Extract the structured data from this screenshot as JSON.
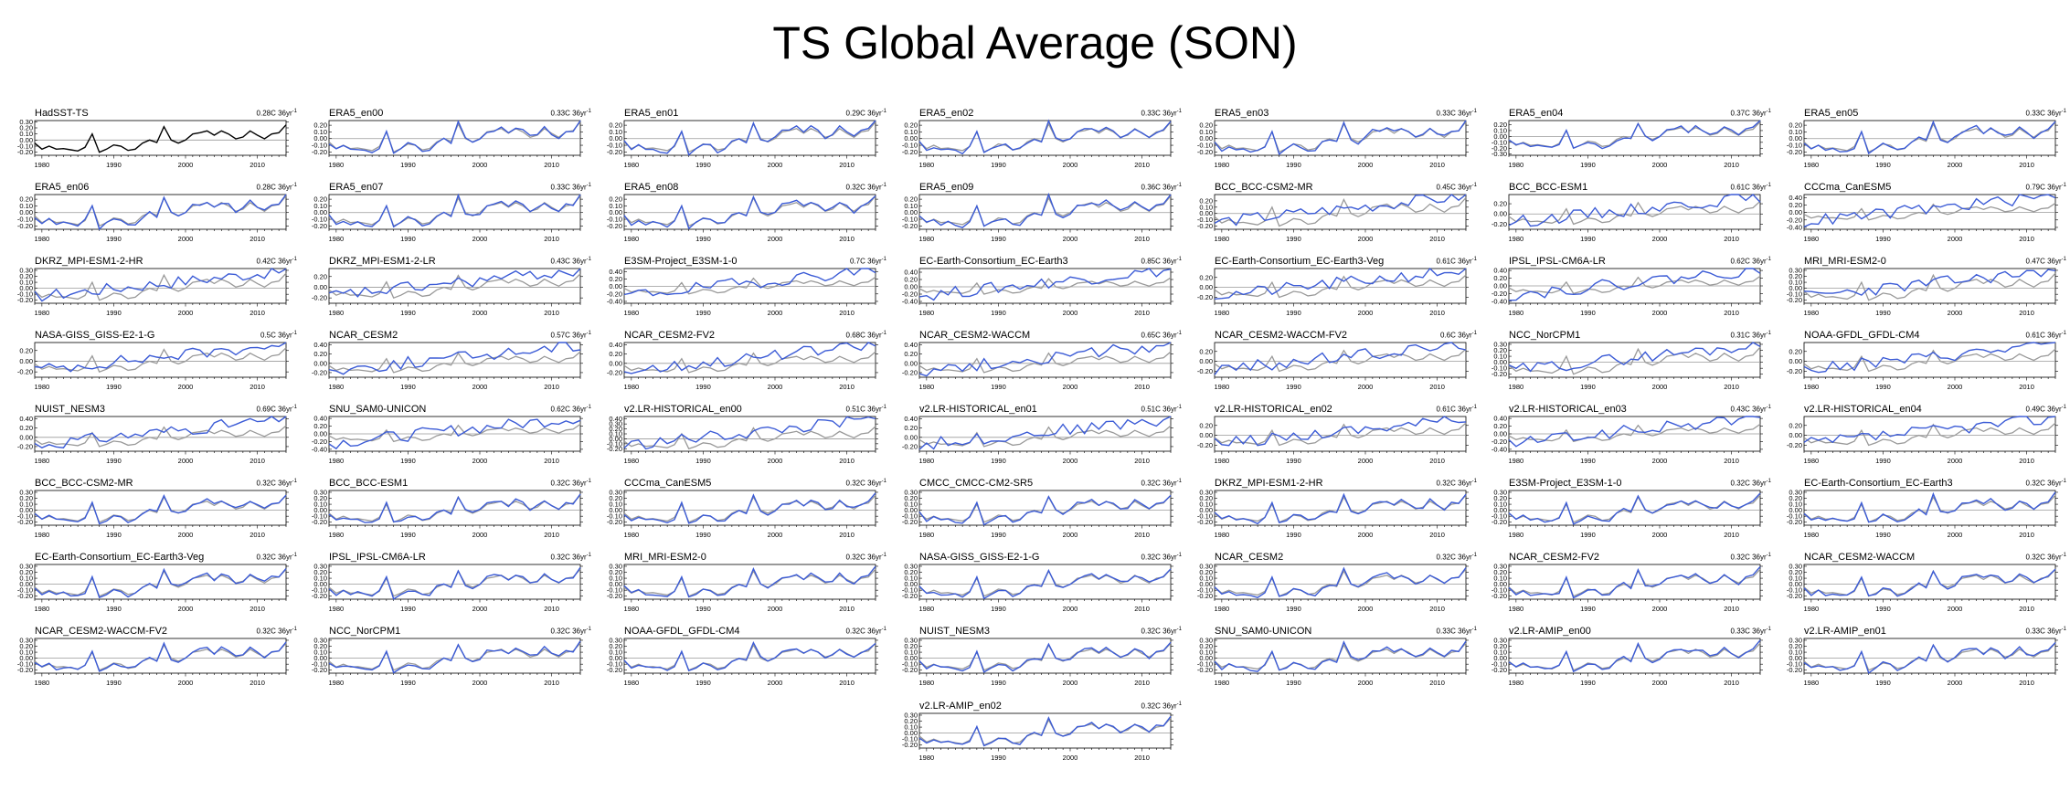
{
  "title": "TS Global Average (SON)",
  "colors": {
    "obs": "#000000",
    "obs_overlay": "#999999",
    "model": "#3b5bd6",
    "zero_line": "#999999"
  },
  "chart_data": {
    "type": "line",
    "title": "TS Global Average (SON)",
    "x_start": 1979,
    "x_end": 2014,
    "x_ticks": [
      "1980",
      "1990",
      "2000",
      "2010"
    ],
    "trend_unit": "36yr",
    "observation": {
      "name": "HadSST-TS",
      "years": [
        1979,
        1980,
        1981,
        1982,
        1983,
        1984,
        1985,
        1986,
        1987,
        1988,
        1989,
        1990,
        1991,
        1992,
        1993,
        1994,
        1995,
        1996,
        1997,
        1998,
        1999,
        2000,
        2001,
        2002,
        2003,
        2004,
        2005,
        2006,
        2007,
        2008,
        2009,
        2010,
        2011,
        2012,
        2013,
        2014
      ],
      "values": [
        -0.05,
        -0.15,
        -0.1,
        -0.15,
        -0.14,
        -0.16,
        -0.18,
        -0.12,
        0.1,
        -0.2,
        -0.15,
        -0.08,
        -0.1,
        -0.17,
        -0.15,
        -0.05,
        0.0,
        -0.04,
        0.22,
        0.0,
        -0.05,
        0.0,
        0.1,
        0.12,
        0.15,
        0.08,
        0.15,
        0.1,
        0.02,
        0.05,
        0.15,
        0.08,
        0.02,
        0.1,
        0.12,
        0.25
      ]
    },
    "panels": [
      {
        "name": "HadSST-TS",
        "trend": "0.28C",
        "yticks": [
          "0.30",
          "0.20",
          "0.10",
          "0.00",
          "-0.10",
          "-0.20"
        ],
        "ylim": [
          -0.25,
          0.32
        ],
        "kind": "obs"
      },
      {
        "name": "ERA5_en00",
        "trend": "0.33C",
        "yticks": [
          "0.20",
          "0.10",
          "0.00",
          "-0.10",
          "-0.20"
        ],
        "ylim": [
          -0.25,
          0.27
        ],
        "kind": "reanalysis"
      },
      {
        "name": "ERA5_en01",
        "trend": "0.29C",
        "yticks": [
          "0.20",
          "0.10",
          "0.00",
          "-0.10",
          "-0.20"
        ],
        "ylim": [
          -0.25,
          0.27
        ],
        "kind": "reanalysis"
      },
      {
        "name": "ERA5_en02",
        "trend": "0.33C",
        "yticks": [
          "0.20",
          "0.10",
          "0.00",
          "-0.10",
          "-0.20"
        ],
        "ylim": [
          -0.25,
          0.27
        ],
        "kind": "reanalysis"
      },
      {
        "name": "ERA5_en03",
        "trend": "0.33C",
        "yticks": [
          "0.20",
          "0.10",
          "0.00",
          "-0.10",
          "-0.20"
        ],
        "ylim": [
          -0.25,
          0.27
        ],
        "kind": "reanalysis"
      },
      {
        "name": "ERA5_en04",
        "trend": "0.37C",
        "yticks": [
          "0.20",
          "0.10",
          "0.00",
          "-0.10",
          "-0.20",
          "-0.30"
        ],
        "ylim": [
          -0.32,
          0.27
        ],
        "kind": "reanalysis"
      },
      {
        "name": "ERA5_en05",
        "trend": "0.33C",
        "yticks": [
          "0.20",
          "0.10",
          "0.00",
          "-0.10",
          "-0.20"
        ],
        "ylim": [
          -0.25,
          0.27
        ],
        "kind": "reanalysis"
      },
      {
        "name": "ERA5_en06",
        "trend": "0.28C",
        "yticks": [
          "0.20",
          "0.10",
          "0.00",
          "-0.10",
          "-0.20"
        ],
        "ylim": [
          -0.25,
          0.27
        ],
        "kind": "reanalysis"
      },
      {
        "name": "ERA5_en07",
        "trend": "0.33C",
        "yticks": [
          "0.20",
          "0.10",
          "0.00",
          "-0.10",
          "-0.20"
        ],
        "ylim": [
          -0.25,
          0.27
        ],
        "kind": "reanalysis"
      },
      {
        "name": "ERA5_en08",
        "trend": "0.32C",
        "yticks": [
          "0.20",
          "0.10",
          "0.00",
          "-0.10",
          "-0.20"
        ],
        "ylim": [
          -0.25,
          0.27
        ],
        "kind": "reanalysis"
      },
      {
        "name": "ERA5_en09",
        "trend": "0.36C",
        "yticks": [
          "0.20",
          "0.10",
          "0.00",
          "-0.10",
          "-0.20"
        ],
        "ylim": [
          -0.25,
          0.27
        ],
        "kind": "reanalysis"
      },
      {
        "name": "BCC_BCC-CSM2-MR",
        "trend": "0.45C",
        "yticks": [
          "0.20",
          "0.10",
          "0.00",
          "-0.10",
          "-0.20"
        ],
        "ylim": [
          -0.25,
          0.3
        ],
        "kind": "model"
      },
      {
        "name": "BCC_BCC-ESM1",
        "trend": "0.61C",
        "yticks": [
          "0.20",
          "0.00",
          "-0.20"
        ],
        "ylim": [
          -0.3,
          0.38
        ],
        "kind": "model"
      },
      {
        "name": "CCCma_CanESM5",
        "trend": "0.79C",
        "yticks": [
          "0.40",
          "0.20",
          "0.00",
          "-0.20",
          "-0.40"
        ],
        "ylim": [
          -0.45,
          0.48
        ],
        "kind": "model"
      },
      {
        "name": "DKRZ_MPI-ESM1-2-HR",
        "trend": "0.42C",
        "yticks": [
          "0.30",
          "0.20",
          "0.10",
          "0.00",
          "-0.10",
          "-0.20"
        ],
        "ylim": [
          -0.25,
          0.33
        ],
        "kind": "model"
      },
      {
        "name": "DKRZ_MPI-ESM1-2-LR",
        "trend": "0.43C",
        "yticks": [
          "0.20",
          "0.00",
          "-0.20"
        ],
        "ylim": [
          -0.3,
          0.35
        ],
        "kind": "model"
      },
      {
        "name": "E3SM-Project_E3SM-1-0",
        "trend": "0.7C",
        "yticks": [
          "0.40",
          "0.20",
          "0.00",
          "-0.20",
          "-0.40"
        ],
        "ylim": [
          -0.45,
          0.48
        ],
        "kind": "model"
      },
      {
        "name": "EC-Earth-Consortium_EC-Earth3",
        "trend": "0.85C",
        "yticks": [
          "0.40",
          "0.20",
          "0.00",
          "-0.20",
          "-0.40"
        ],
        "ylim": [
          -0.45,
          0.5
        ],
        "kind": "model"
      },
      {
        "name": "EC-Earth-Consortium_EC-Earth3-Veg",
        "trend": "0.61C",
        "yticks": [
          "0.20",
          "0.00",
          "-0.20"
        ],
        "ylim": [
          -0.32,
          0.38
        ],
        "kind": "model"
      },
      {
        "name": "IPSL_IPSL-CM6A-LR",
        "trend": "0.62C",
        "yticks": [
          "0.40",
          "0.20",
          "0.00",
          "-0.20",
          "-0.40"
        ],
        "ylim": [
          -0.45,
          0.45
        ],
        "kind": "model"
      },
      {
        "name": "MRI_MRI-ESM2-0",
        "trend": "0.47C",
        "yticks": [
          "0.30",
          "0.20",
          "0.10",
          "0.00",
          "-0.10",
          "-0.20"
        ],
        "ylim": [
          -0.25,
          0.33
        ],
        "kind": "model"
      },
      {
        "name": "NASA-GISS_GISS-E2-1-G",
        "trend": "0.5C",
        "yticks": [
          "0.20",
          "0.00",
          "-0.20"
        ],
        "ylim": [
          -0.3,
          0.35
        ],
        "kind": "model"
      },
      {
        "name": "NCAR_CESM2",
        "trend": "0.57C",
        "yticks": [
          "0.40",
          "0.20",
          "0.00",
          "-0.20"
        ],
        "ylim": [
          -0.3,
          0.45
        ],
        "kind": "model"
      },
      {
        "name": "NCAR_CESM2-FV2",
        "trend": "0.68C",
        "yticks": [
          "0.40",
          "0.20",
          "0.00",
          "-0.20"
        ],
        "ylim": [
          -0.3,
          0.45
        ],
        "kind": "model"
      },
      {
        "name": "NCAR_CESM2-WACCM",
        "trend": "0.65C",
        "yticks": [
          "0.40",
          "0.20",
          "0.00",
          "-0.20"
        ],
        "ylim": [
          -0.3,
          0.45
        ],
        "kind": "model"
      },
      {
        "name": "NCAR_CESM2-WACCM-FV2",
        "trend": "0.6C",
        "yticks": [
          "0.20",
          "0.00",
          "-0.20"
        ],
        "ylim": [
          -0.32,
          0.38
        ],
        "kind": "model"
      },
      {
        "name": "NCC_NorCPM1",
        "trend": "0.31C",
        "yticks": [
          "0.30",
          "0.20",
          "0.10",
          "0.00",
          "-0.10",
          "-0.20"
        ],
        "ylim": [
          -0.25,
          0.33
        ],
        "kind": "model"
      },
      {
        "name": "NOAA-GFDL_GFDL-CM4",
        "trend": "0.61C",
        "yticks": [
          "0.20",
          "0.00",
          "-0.20"
        ],
        "ylim": [
          -0.32,
          0.38
        ],
        "kind": "model"
      },
      {
        "name": "NUIST_NESM3",
        "trend": "0.69C",
        "yticks": [
          "0.40",
          "0.20",
          "0.00",
          "-0.20"
        ],
        "ylim": [
          -0.3,
          0.45
        ],
        "kind": "model"
      },
      {
        "name": "SNU_SAM0-UNICON",
        "trend": "0.62C",
        "yticks": [
          "0.40",
          "0.20",
          "0.00",
          "-0.20",
          "-0.40"
        ],
        "ylim": [
          -0.45,
          0.45
        ],
        "kind": "model"
      },
      {
        "name": "v2.LR-HISTORICAL_en00",
        "trend": "0.51C",
        "yticks": [
          "0.40",
          "0.30",
          "0.20",
          "0.10",
          "0.00",
          "-0.10",
          "-0.20"
        ],
        "ylim": [
          -0.25,
          0.45
        ],
        "kind": "model"
      },
      {
        "name": "v2.LR-HISTORICAL_en01",
        "trend": "0.51C",
        "yticks": [
          "0.40",
          "0.20",
          "0.00",
          "-0.20"
        ],
        "ylim": [
          -0.3,
          0.45
        ],
        "kind": "model"
      },
      {
        "name": "v2.LR-HISTORICAL_en02",
        "trend": "0.61C",
        "yticks": [
          "0.20",
          "0.00",
          "-0.20"
        ],
        "ylim": [
          -0.32,
          0.38
        ],
        "kind": "model"
      },
      {
        "name": "v2.LR-HISTORICAL_en03",
        "trend": "0.43C",
        "yticks": [
          "0.40",
          "0.20",
          "0.00",
          "-0.20",
          "-0.40"
        ],
        "ylim": [
          -0.45,
          0.45
        ],
        "kind": "model"
      },
      {
        "name": "v2.LR-HISTORICAL_en04",
        "trend": "0.49C",
        "yticks": [
          "0.20",
          "0.00",
          "-0.20"
        ],
        "ylim": [
          -0.32,
          0.38
        ],
        "kind": "model"
      },
      {
        "name": "BCC_BCC-CSM2-MR",
        "trend": "0.32C",
        "yticks": [
          "0.30",
          "0.20",
          "0.10",
          "0.00",
          "-0.10",
          "-0.20"
        ],
        "ylim": [
          -0.25,
          0.33
        ],
        "kind": "amip"
      },
      {
        "name": "BCC_BCC-ESM1",
        "trend": "0.32C",
        "yticks": [
          "0.30",
          "0.20",
          "0.10",
          "0.00",
          "-0.10",
          "-0.20"
        ],
        "ylim": [
          -0.25,
          0.33
        ],
        "kind": "amip"
      },
      {
        "name": "CCCma_CanESM5",
        "trend": "0.32C",
        "yticks": [
          "0.30",
          "0.20",
          "0.10",
          "0.00",
          "-0.10",
          "-0.20"
        ],
        "ylim": [
          -0.25,
          0.33
        ],
        "kind": "amip"
      },
      {
        "name": "CMCC_CMCC-CM2-SR5",
        "trend": "0.32C",
        "yticks": [
          "0.30",
          "0.20",
          "0.10",
          "0.00",
          "-0.10",
          "-0.20"
        ],
        "ylim": [
          -0.25,
          0.33
        ],
        "kind": "amip"
      },
      {
        "name": "DKRZ_MPI-ESM1-2-HR",
        "trend": "0.32C",
        "yticks": [
          "0.30",
          "0.20",
          "0.10",
          "0.00",
          "-0.10",
          "-0.20"
        ],
        "ylim": [
          -0.25,
          0.33
        ],
        "kind": "amip"
      },
      {
        "name": "E3SM-Project_E3SM-1-0",
        "trend": "0.32C",
        "yticks": [
          "0.30",
          "0.20",
          "0.10",
          "0.00",
          "-0.10",
          "-0.20"
        ],
        "ylim": [
          -0.25,
          0.33
        ],
        "kind": "amip"
      },
      {
        "name": "EC-Earth-Consortium_EC-Earth3",
        "trend": "0.32C",
        "yticks": [
          "0.30",
          "0.20",
          "0.10",
          "0.00",
          "-0.10",
          "-0.20"
        ],
        "ylim": [
          -0.25,
          0.33
        ],
        "kind": "amip"
      },
      {
        "name": "EC-Earth-Consortium_EC-Earth3-Veg",
        "trend": "0.32C",
        "yticks": [
          "0.30",
          "0.20",
          "0.10",
          "0.00",
          "-0.10",
          "-0.20"
        ],
        "ylim": [
          -0.25,
          0.33
        ],
        "kind": "amip"
      },
      {
        "name": "IPSL_IPSL-CM6A-LR",
        "trend": "0.32C",
        "yticks": [
          "0.30",
          "0.20",
          "0.10",
          "0.00",
          "-0.10",
          "-0.20"
        ],
        "ylim": [
          -0.25,
          0.33
        ],
        "kind": "amip"
      },
      {
        "name": "MRI_MRI-ESM2-0",
        "trend": "0.32C",
        "yticks": [
          "0.30",
          "0.20",
          "0.10",
          "0.00",
          "-0.10",
          "-0.20"
        ],
        "ylim": [
          -0.25,
          0.33
        ],
        "kind": "amip"
      },
      {
        "name": "NASA-GISS_GISS-E2-1-G",
        "trend": "0.32C",
        "yticks": [
          "0.30",
          "0.20",
          "0.10",
          "0.00",
          "-0.10",
          "-0.20"
        ],
        "ylim": [
          -0.25,
          0.33
        ],
        "kind": "amip"
      },
      {
        "name": "NCAR_CESM2",
        "trend": "0.32C",
        "yticks": [
          "0.30",
          "0.20",
          "0.10",
          "0.00",
          "-0.10",
          "-0.20"
        ],
        "ylim": [
          -0.25,
          0.33
        ],
        "kind": "amip"
      },
      {
        "name": "NCAR_CESM2-FV2",
        "trend": "0.32C",
        "yticks": [
          "0.30",
          "0.20",
          "0.10",
          "0.00",
          "-0.10",
          "-0.20"
        ],
        "ylim": [
          -0.25,
          0.33
        ],
        "kind": "amip"
      },
      {
        "name": "NCAR_CESM2-WACCM",
        "trend": "0.32C",
        "yticks": [
          "0.30",
          "0.20",
          "0.10",
          "0.00",
          "-0.10",
          "-0.20"
        ],
        "ylim": [
          -0.25,
          0.33
        ],
        "kind": "amip"
      },
      {
        "name": "NCAR_CESM2-WACCM-FV2",
        "trend": "0.32C",
        "yticks": [
          "0.30",
          "0.20",
          "0.10",
          "0.00",
          "-0.10",
          "-0.20"
        ],
        "ylim": [
          -0.25,
          0.33
        ],
        "kind": "amip"
      },
      {
        "name": "NCC_NorCPM1",
        "trend": "0.32C",
        "yticks": [
          "0.30",
          "0.20",
          "0.10",
          "0.00",
          "-0.10",
          "-0.20"
        ],
        "ylim": [
          -0.25,
          0.33
        ],
        "kind": "amip"
      },
      {
        "name": "NOAA-GFDL_GFDL-CM4",
        "trend": "0.32C",
        "yticks": [
          "0.30",
          "0.20",
          "0.10",
          "0.00",
          "-0.10",
          "-0.20"
        ],
        "ylim": [
          -0.25,
          0.33
        ],
        "kind": "amip"
      },
      {
        "name": "NUIST_NESM3",
        "trend": "0.32C",
        "yticks": [
          "0.30",
          "0.20",
          "0.10",
          "0.00",
          "-0.10",
          "-0.20"
        ],
        "ylim": [
          -0.25,
          0.33
        ],
        "kind": "amip"
      },
      {
        "name": "SNU_SAM0-UNICON",
        "trend": "0.33C",
        "yticks": [
          "0.30",
          "0.20",
          "0.10",
          "0.00",
          "-0.10",
          "-0.20"
        ],
        "ylim": [
          -0.25,
          0.33
        ],
        "kind": "amip"
      },
      {
        "name": "v2.LR-AMIP_en00",
        "trend": "0.33C",
        "yticks": [
          "0.30",
          "0.20",
          "0.10",
          "0.00",
          "-0.10",
          "-0.20"
        ],
        "ylim": [
          -0.25,
          0.33
        ],
        "kind": "amip"
      },
      {
        "name": "v2.LR-AMIP_en01",
        "trend": "0.33C",
        "yticks": [
          "0.30",
          "0.20",
          "0.10",
          "0.00",
          "-0.10",
          "-0.20"
        ],
        "ylim": [
          -0.25,
          0.33
        ],
        "kind": "amip"
      },
      {
        "name": "v2.LR-AMIP_en02",
        "trend": "0.32C",
        "yticks": [
          "0.30",
          "0.20",
          "0.10",
          "0.00",
          "-0.10",
          "-0.20"
        ],
        "ylim": [
          -0.25,
          0.33
        ],
        "kind": "amip"
      }
    ]
  }
}
